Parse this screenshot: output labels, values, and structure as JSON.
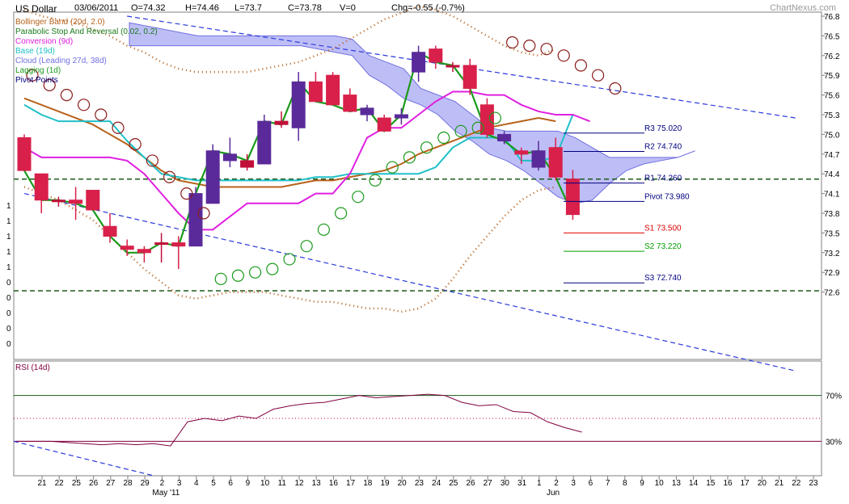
{
  "header": {
    "symbol": "US Dollar",
    "date": "03/06/2011",
    "open": "O=74.32",
    "high": "H=74.46",
    "low": "L=73.7",
    "close": "C=73.78",
    "volume": "V=0",
    "change": "Chg=-0.55 (-0.7%)",
    "brand": "ChartNexus.com"
  },
  "legend": [
    {
      "label": "Bollinger Band (20d, 2.0)",
      "color": "#b8621b"
    },
    {
      "label": "Parabolic Stop And Reversal (0.02, 0.2)",
      "color": "#1a7a1a"
    },
    {
      "label": "Conversion (9d)",
      "color": "#e020e0"
    },
    {
      "label": "Base (19d)",
      "color": "#20c0c8"
    },
    {
      "label": "Cloud (Leading 27d, 38d)",
      "color": "#7070e0"
    },
    {
      "label": "Lagging (1d)",
      "color": "#1a9a1a"
    },
    {
      "label": "Pivot Points",
      "color": "#000080"
    }
  ],
  "rsi_title": "RSI (14d)",
  "chart_data": {
    "type": "candlestick",
    "y_ticks": [
      "76.8",
      "76.5",
      "76.2",
      "75.9",
      "75.6",
      "75.3",
      "75.0",
      "74.7",
      "74.4",
      "74.1",
      "73.8",
      "73.5",
      "73.2",
      "72.9",
      "72.6"
    ],
    "left_axis_labels": [
      "1",
      "1",
      "1",
      "1",
      "1",
      "0",
      "0",
      "0",
      "0",
      "0"
    ],
    "x_ticks": [
      "21",
      "22",
      "25",
      "26",
      "27",
      "28",
      "29",
      "2",
      "3",
      "4",
      "5",
      "6",
      "9",
      "10",
      "11",
      "12",
      "13",
      "16",
      "17",
      "18",
      "19",
      "20",
      "23",
      "24",
      "25",
      "26",
      "27",
      "30",
      "31",
      "1",
      "2",
      "3",
      "6",
      "7",
      "8",
      "9",
      "10",
      "13",
      "14",
      "15",
      "16",
      "17",
      "20",
      "21",
      "22",
      "23"
    ],
    "month_labels": [
      {
        "label": "May '11",
        "index": 7
      },
      {
        "label": "Jun",
        "index": 30
      }
    ],
    "candles": [
      {
        "o": 74.95,
        "h": 75.0,
        "l": 74.45,
        "c": 74.45,
        "dir": "down"
      },
      {
        "o": 74.4,
        "h": 74.4,
        "l": 73.8,
        "c": 74.0,
        "dir": "down"
      },
      {
        "o": 74.0,
        "h": 74.05,
        "l": 73.9,
        "c": 74.0,
        "dir": "flat"
      },
      {
        "o": 74.0,
        "h": 74.2,
        "l": 73.7,
        "c": 73.95,
        "dir": "down"
      },
      {
        "o": 74.15,
        "h": 74.15,
        "l": 73.85,
        "c": 73.85,
        "dir": "down"
      },
      {
        "o": 73.6,
        "h": 73.8,
        "l": 73.35,
        "c": 73.45,
        "dir": "down"
      },
      {
        "o": 73.3,
        "h": 73.4,
        "l": 73.15,
        "c": 73.25,
        "dir": "down"
      },
      {
        "o": 73.25,
        "h": 73.3,
        "l": 73.05,
        "c": 73.2,
        "dir": "down"
      },
      {
        "o": 73.35,
        "h": 73.5,
        "l": 73.05,
        "c": 73.35,
        "dir": "flat"
      },
      {
        "o": 73.35,
        "h": 73.45,
        "l": 72.95,
        "c": 73.3,
        "dir": "down"
      },
      {
        "o": 73.3,
        "h": 74.2,
        "l": 73.3,
        "c": 74.1,
        "dir": "up"
      },
      {
        "o": 73.95,
        "h": 74.85,
        "l": 73.95,
        "c": 74.75,
        "dir": "up"
      },
      {
        "o": 74.6,
        "h": 74.95,
        "l": 74.5,
        "c": 74.7,
        "dir": "up"
      },
      {
        "o": 74.5,
        "h": 74.7,
        "l": 74.45,
        "c": 74.6,
        "dir": "flat"
      },
      {
        "o": 74.55,
        "h": 75.3,
        "l": 74.55,
        "c": 75.2,
        "dir": "up"
      },
      {
        "o": 75.2,
        "h": 75.35,
        "l": 75.1,
        "c": 75.15,
        "dir": "flat"
      },
      {
        "o": 75.1,
        "h": 75.95,
        "l": 74.9,
        "c": 75.8,
        "dir": "up"
      },
      {
        "o": 75.8,
        "h": 75.95,
        "l": 75.5,
        "c": 75.5,
        "dir": "down"
      },
      {
        "o": 75.9,
        "h": 75.95,
        "l": 75.45,
        "c": 75.45,
        "dir": "down"
      },
      {
        "o": 75.6,
        "h": 75.7,
        "l": 75.35,
        "c": 75.35,
        "dir": "down"
      },
      {
        "o": 75.3,
        "h": 75.45,
        "l": 75.2,
        "c": 75.4,
        "dir": "up"
      },
      {
        "o": 75.25,
        "h": 75.3,
        "l": 75.05,
        "c": 75.05,
        "dir": "down"
      },
      {
        "o": 75.25,
        "h": 75.4,
        "l": 75.15,
        "c": 75.3,
        "dir": "up"
      },
      {
        "o": 75.95,
        "h": 76.35,
        "l": 75.8,
        "c": 76.25,
        "dir": "up"
      },
      {
        "o": 76.3,
        "h": 76.35,
        "l": 76.0,
        "c": 76.1,
        "dir": "down"
      },
      {
        "o": 76.05,
        "h": 76.1,
        "l": 75.95,
        "c": 76.05,
        "dir": "flat"
      },
      {
        "o": 76.05,
        "h": 76.15,
        "l": 75.6,
        "c": 75.7,
        "dir": "down"
      },
      {
        "o": 75.45,
        "h": 75.55,
        "l": 74.95,
        "c": 75.0,
        "dir": "down"
      },
      {
        "o": 75.0,
        "h": 75.05,
        "l": 74.85,
        "c": 74.9,
        "dir": "up"
      },
      {
        "o": 74.75,
        "h": 74.8,
        "l": 74.55,
        "c": 74.7,
        "dir": "down"
      },
      {
        "o": 74.5,
        "h": 74.9,
        "l": 74.45,
        "c": 74.75,
        "dir": "up"
      },
      {
        "o": 74.8,
        "h": 74.95,
        "l": 74.3,
        "c": 74.35,
        "dir": "down"
      },
      {
        "o": 74.32,
        "h": 74.46,
        "l": 73.7,
        "c": 73.78,
        "dir": "down"
      }
    ],
    "pivots": [
      {
        "label": "R3 75.020",
        "value": 75.02,
        "color": "#000080"
      },
      {
        "label": "R2 74.740",
        "value": 74.74,
        "color": "#000080"
      },
      {
        "label": "R1 74.260",
        "value": 74.26,
        "color": "#000080"
      },
      {
        "label": "Pivot 73.980",
        "value": 73.98,
        "color": "#000080"
      },
      {
        "label": "S1 73.500",
        "value": 73.5,
        "color": "#e00000"
      },
      {
        "label": "S2 73.220",
        "value": 73.22,
        "color": "#00a000"
      },
      {
        "label": "S3 72.740",
        "value": 72.74,
        "color": "#000080"
      }
    ],
    "hlines": [
      74.32,
      72.62
    ],
    "sar": [
      75.9,
      75.75,
      75.6,
      75.45,
      75.3,
      75.1,
      74.85,
      74.6,
      74.35,
      74.1,
      73.8,
      72.8,
      72.85,
      72.9,
      72.95,
      73.1,
      73.3,
      73.55,
      73.8,
      74.05,
      74.3,
      74.5,
      74.65,
      74.8,
      74.95,
      75.05,
      75.1,
      75.25,
      76.4,
      76.35,
      76.3,
      76.2,
      76.05,
      75.9,
      75.7
    ],
    "conversion": [
      74.8,
      74.65,
      74.65,
      74.65,
      74.65,
      74.65,
      74.6,
      74.4,
      74.1,
      73.8,
      73.55,
      73.55,
      73.75,
      73.95,
      73.95,
      73.95,
      73.95,
      74.1,
      74.1,
      74.4,
      74.95,
      75.1,
      75.1,
      75.3,
      75.5,
      75.65,
      75.65,
      75.6,
      75.6,
      75.45,
      75.35,
      75.3,
      75.3,
      75.2
    ],
    "base": [
      75.45,
      75.3,
      75.2,
      75.2,
      75.2,
      75.2,
      74.9,
      74.65,
      74.4,
      74.35,
      74.3,
      74.3,
      74.3,
      74.3,
      74.3,
      74.3,
      74.3,
      74.35,
      74.35,
      74.4,
      74.4,
      74.4,
      74.4,
      74.4,
      74.5,
      74.8,
      74.95,
      74.95,
      74.95,
      74.6,
      74.6,
      74.65,
      75.3
    ],
    "lagging": [
      74.45,
      74.0,
      74.0,
      73.95,
      73.85,
      73.45,
      73.2,
      73.2,
      73.35,
      73.3,
      74.1,
      74.75,
      74.7,
      74.6,
      75.2,
      75.15,
      75.8,
      75.5,
      75.45,
      75.35,
      75.4,
      75.05,
      75.3,
      76.25,
      76.1,
      76.05,
      75.7,
      75.0,
      74.9,
      74.7,
      74.75,
      74.35,
      73.78
    ],
    "bb_mid": [
      75.55,
      75.45,
      75.35,
      75.25,
      75.15,
      75.0,
      74.85,
      74.65,
      74.45,
      74.3,
      74.25,
      74.2,
      74.2,
      74.2,
      74.2,
      74.2,
      74.25,
      74.3,
      74.3,
      74.35,
      74.4,
      74.45,
      74.55,
      74.7,
      74.8,
      74.9,
      75.0,
      75.1,
      75.15,
      75.2,
      75.25,
      75.2
    ],
    "bb_upper": [
      76.9,
      76.8,
      76.75,
      76.7,
      76.6,
      76.5,
      76.35,
      76.25,
      76.1,
      76.0,
      75.95,
      75.95,
      75.95,
      75.95,
      76.0,
      76.05,
      76.1,
      76.2,
      76.3,
      76.45,
      76.6,
      76.75,
      76.85,
      76.95,
      76.9,
      76.8,
      76.65,
      76.5,
      76.35,
      76.25,
      76.2,
      76.3
    ],
    "bb_lower": [
      74.2,
      74.1,
      74.0,
      73.85,
      73.7,
      73.45,
      73.2,
      72.95,
      72.75,
      72.55,
      72.5,
      72.55,
      72.6,
      72.6,
      72.6,
      72.55,
      72.5,
      72.45,
      72.45,
      72.4,
      72.35,
      72.35,
      72.3,
      72.35,
      72.5,
      72.8,
      73.15,
      73.45,
      73.75,
      74.0,
      74.15,
      74.2
    ],
    "cloud_top": [
      76.7,
      76.65,
      76.6,
      76.55,
      76.5,
      76.5,
      76.5,
      76.5,
      76.5,
      76.5,
      76.5,
      76.5,
      76.5,
      76.45,
      76.2,
      76.1,
      76.0,
      75.7,
      75.6,
      75.5,
      75.3,
      75.1,
      75.05,
      75.05,
      75.05,
      75.05,
      74.95,
      74.8,
      74.65,
      74.65,
      74.65,
      74.65,
      74.65,
      74.75
    ],
    "cloud_bottom": [
      76.35,
      76.35,
      76.35,
      76.35,
      76.35,
      76.35,
      76.35,
      76.35,
      76.35,
      76.35,
      76.35,
      76.3,
      76.25,
      76.2,
      75.9,
      75.75,
      75.55,
      75.45,
      75.3,
      75.05,
      74.9,
      74.7,
      74.6,
      74.45,
      74.25,
      74.05,
      73.95,
      74.0,
      74.25,
      74.45,
      74.55,
      74.6,
      74.65,
      74.75
    ],
    "rsi": {
      "levels": [
        "70%",
        "30%"
      ],
      "values": [
        30,
        30,
        30,
        29,
        28,
        27,
        28,
        27,
        28,
        26,
        47,
        50,
        48,
        52,
        50,
        58,
        61,
        63,
        64,
        67,
        70,
        68,
        69,
        70,
        71,
        70,
        64,
        61,
        62,
        56,
        55,
        47,
        42,
        38
      ],
      "ylim": [
        0,
        100
      ]
    },
    "trendlines": [
      {
        "from": [
          6,
          76.8
        ],
        "to": [
          45,
          75.25
        ]
      },
      {
        "from": [
          0,
          74.1
        ],
        "to": [
          45,
          71.4
        ]
      }
    ]
  }
}
